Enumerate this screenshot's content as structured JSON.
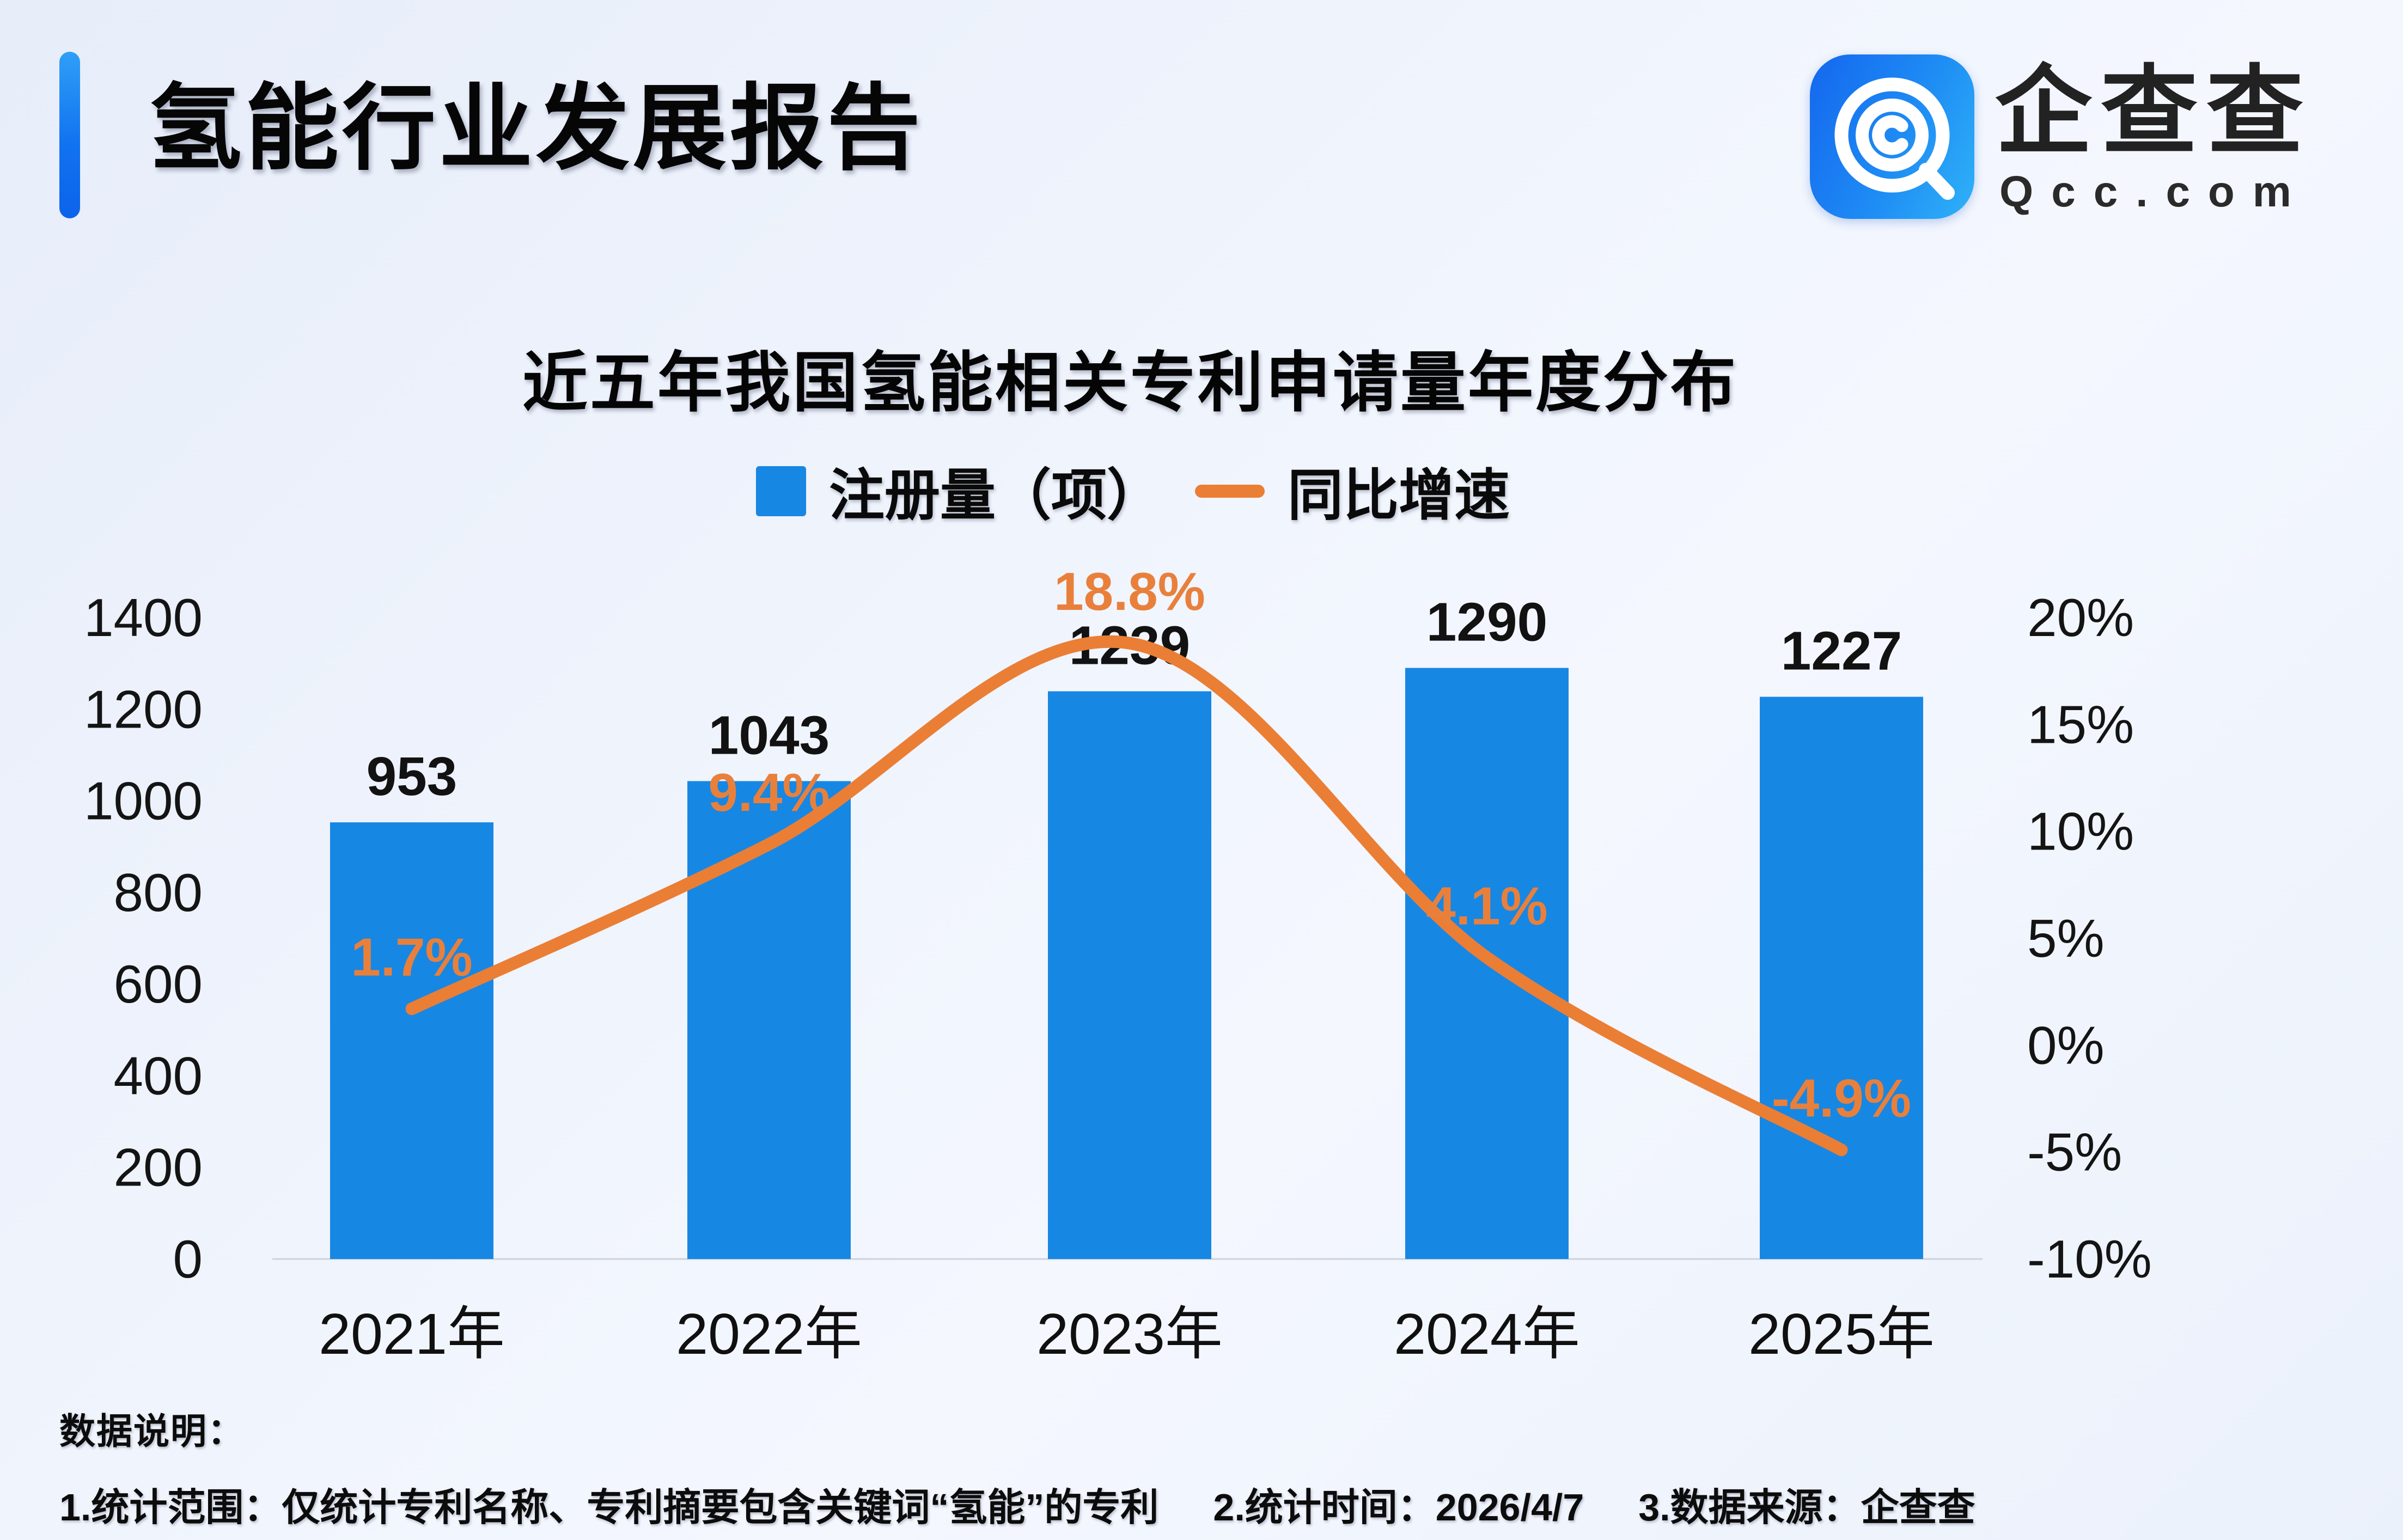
{
  "header": {
    "title": "氢能行业发展报告",
    "accent_color": "#1173f0"
  },
  "logo": {
    "name": "企查查",
    "domain": "Qcc.com",
    "icon": "qcc-spiral-q-icon",
    "icon_color": "#1e8cf4"
  },
  "chart_data": {
    "type": "bar",
    "title": "近五年我国氢能相关专利申请量年度分布",
    "categories": [
      "2021年",
      "2022年",
      "2023年",
      "2024年",
      "2025年"
    ],
    "series": [
      {
        "name": "注册量（项）",
        "type": "bar",
        "axis": "left",
        "values": [
          953,
          1043,
          1239,
          1290,
          1227
        ],
        "color": "#1787e4",
        "value_label_color": "#121212"
      },
      {
        "name": "同比增速",
        "type": "line",
        "axis": "right",
        "values": [
          1.7,
          9.4,
          18.8,
          4.1,
          -4.9
        ],
        "labels": [
          "1.7%",
          "9.4%",
          "18.8%",
          "4.1%",
          "-4.9%"
        ],
        "color": "#ea7e35",
        "label_color": "#e8803c"
      }
    ],
    "left_axis": {
      "min": 0,
      "max": 1400,
      "tick_step": 200,
      "ticks": [
        "1400",
        "1200",
        "1000",
        "800",
        "600",
        "400",
        "200",
        "0"
      ]
    },
    "right_axis": {
      "min": -10,
      "max": 20,
      "tick_step": 5,
      "ticks": [
        "20%",
        "15%",
        "10%",
        "5%",
        "0%",
        "-5%",
        "-10%"
      ]
    },
    "grid": "off",
    "legend_position": "top-center"
  },
  "footer": {
    "heading": "数据说明：",
    "notes": [
      "1.统计范围：仅统计专利名称、专利摘要包含关键词“氢能”的专利",
      "2.统计时间：2026/4/7",
      "3.数据来源：企查查"
    ]
  }
}
